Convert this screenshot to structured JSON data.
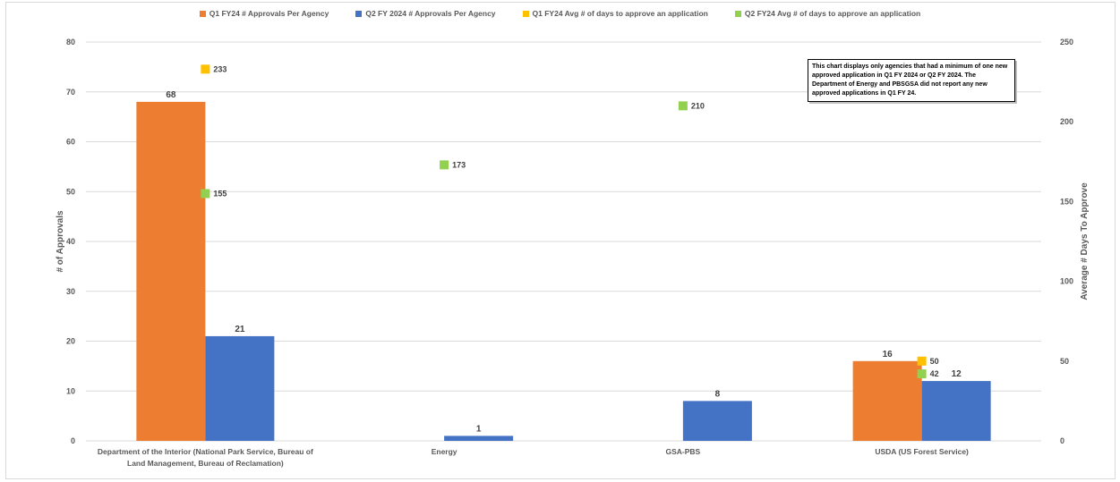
{
  "chart_data": {
    "type": "bar",
    "categories": [
      "Department of the Interior (National Park Service, Bureau of Land Management, Bureau of Reclamation)",
      "Energy",
      "GSA-PBS",
      "USDA (US Forest Service)"
    ],
    "category_lines": [
      [
        "Department of the Interior (National Park Service, Bureau of",
        "Land Management, Bureau of Reclamation)"
      ],
      [
        "Energy"
      ],
      [
        "GSA-PBS"
      ],
      [
        "USDA (US Forest Service)"
      ]
    ],
    "bar_series": [
      {
        "name": "Q1 FY24 # Approvals Per Agency",
        "color": "#ed7d31",
        "values": [
          68,
          null,
          null,
          16
        ]
      },
      {
        "name": "Q2 FY 2024 # Approvals Per Agency",
        "color": "#4472c4",
        "values": [
          21,
          1,
          8,
          12
        ]
      }
    ],
    "marker_series": [
      {
        "name": "Q1 FY24 Avg # of days to approve an application",
        "color": "#ffc000",
        "values": [
          233,
          null,
          null,
          50
        ]
      },
      {
        "name": "Q2 FY24 Avg # of days to approve an application",
        "color": "#92d050",
        "values": [
          155,
          173,
          210,
          42
        ]
      }
    ],
    "ylabel": "# of Approvals",
    "y2label": "Average # Days To Approve",
    "ylim": [
      0,
      80
    ],
    "y2lim": [
      0,
      250
    ],
    "yticks": [
      0,
      10,
      20,
      30,
      40,
      50,
      60,
      70,
      80
    ],
    "y2ticks": [
      0,
      50,
      100,
      150,
      200,
      250
    ],
    "grid": true,
    "legend_position": "top",
    "note": "This chart displays only agencies that had a minimum of one new approved application in Q1 FY 2024 or Q2 FY 2024. The Department of Energy and PBSGSA did not report any new approved applications in Q1 FY 24."
  }
}
